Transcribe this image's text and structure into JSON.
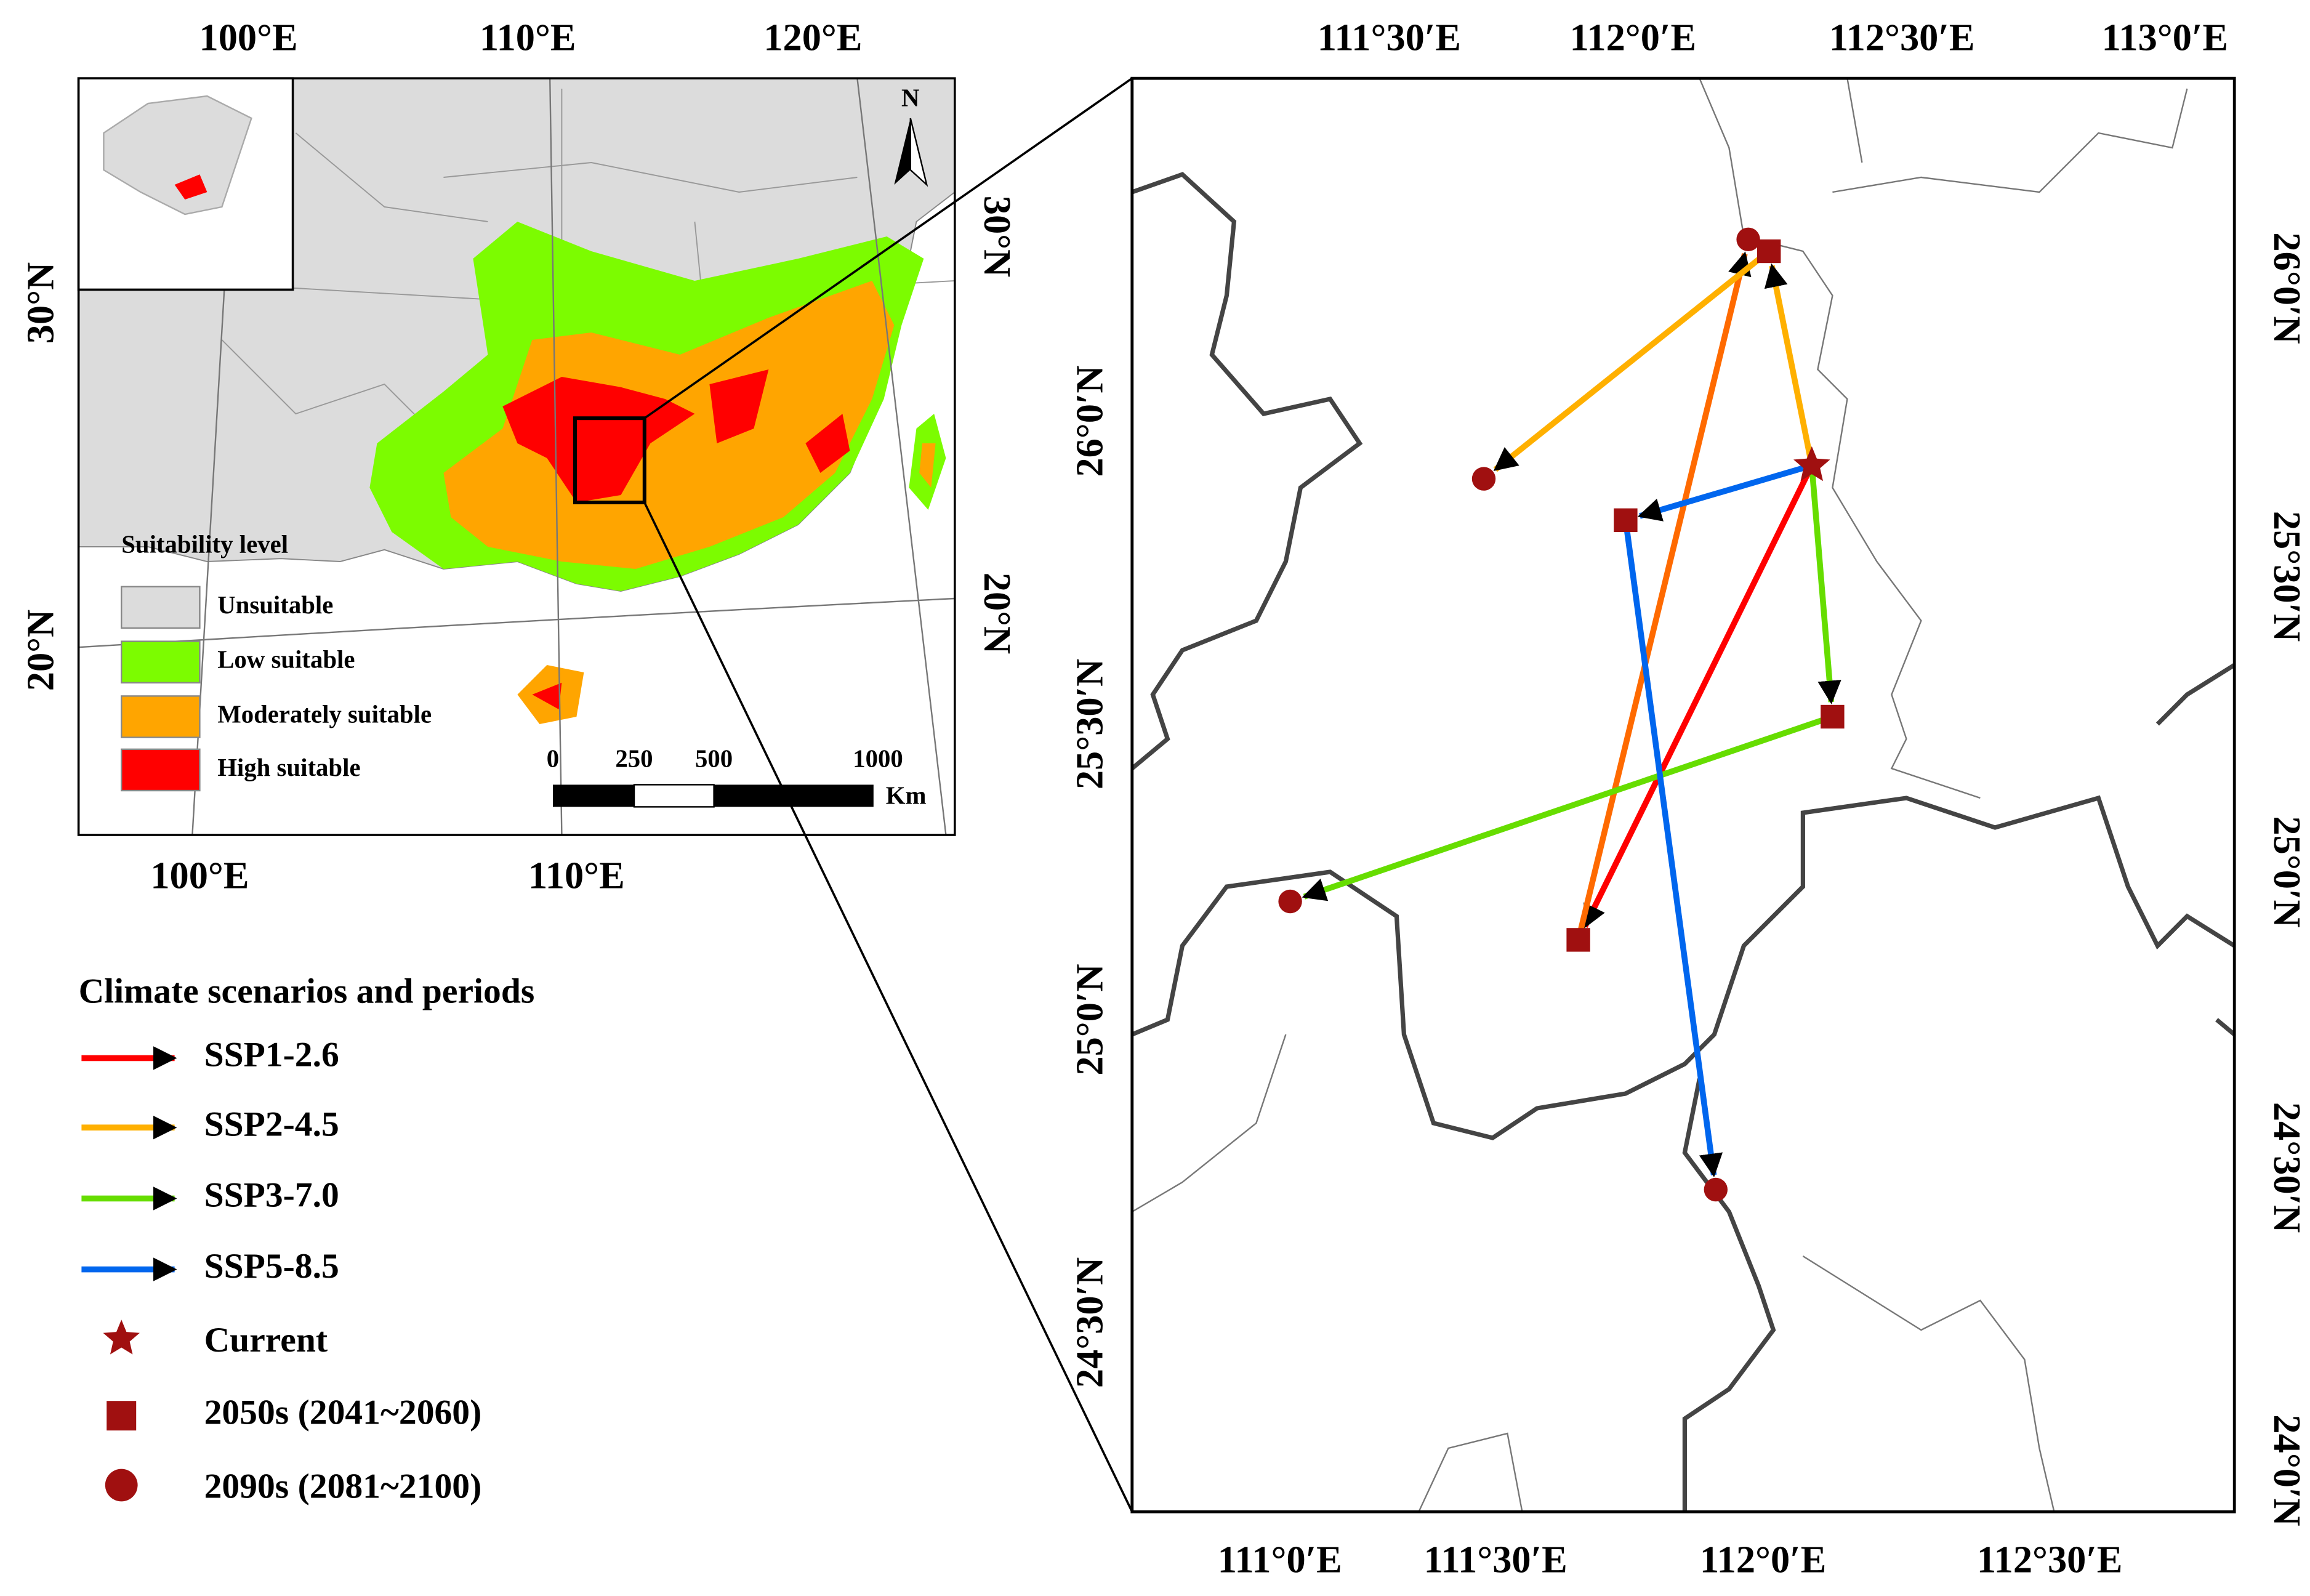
{
  "overview_map": {
    "top_labels": [
      "100°E",
      "110°E",
      "120°E"
    ],
    "bottom_labels": [
      "100°E",
      "110°E"
    ],
    "left_labels": [
      "30°N",
      "20°N"
    ],
    "right_labels": [
      "30°N",
      "20°N"
    ],
    "north": "N",
    "legend": {
      "title": "Suitability level",
      "items": [
        "Unsuitable",
        "Low suitable",
        "Moderately suitable",
        "High suitable"
      ]
    },
    "scale_bar": {
      "labels": [
        "0",
        "250",
        "500",
        "1000"
      ],
      "unit": "Km"
    }
  },
  "scenario_legend": {
    "title": "Climate scenarios and periods",
    "items": [
      "SSP1-2.6",
      "SSP2-4.5",
      "SSP3-7.0",
      "SSP5-8.5",
      "Current",
      "2050s (2041~2060)",
      "2090s (2081~2100)"
    ]
  },
  "detail_map": {
    "top_labels": [
      "111°30′E",
      "112°0′E",
      "112°30′E",
      "113°0′E"
    ],
    "bottom_labels": [
      "111°0′E",
      "111°30′E",
      "112°0′E",
      "112°30′E"
    ],
    "left_labels": [
      "26°0′N",
      "25°30′N",
      "25°0′N",
      "24°30′N"
    ],
    "right_labels": [
      "26°0′N",
      "25°30′N",
      "25°0′N",
      "24°30′N",
      "24°0′N"
    ]
  }
}
